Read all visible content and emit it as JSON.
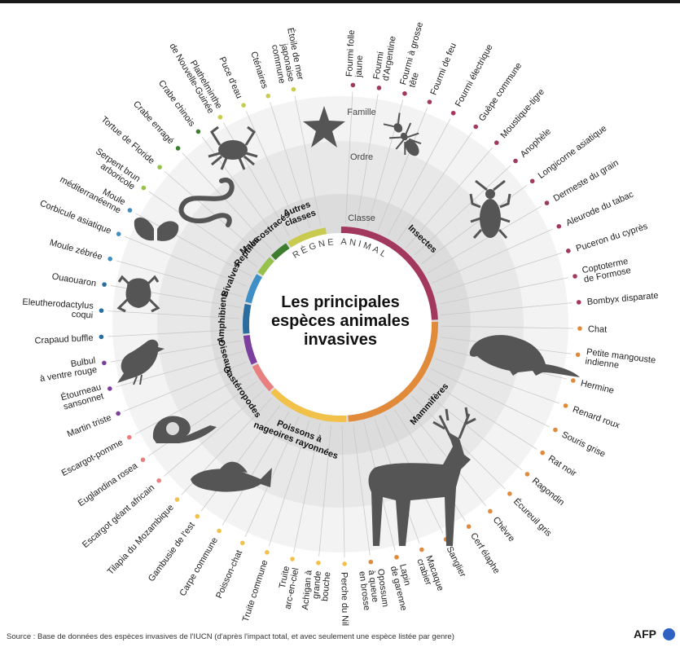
{
  "title": "Les principales espèces animales invasives",
  "title_lines": [
    "Les principales",
    "espèces animales",
    "invasives"
  ],
  "ring_labels": {
    "kingdom": "RÈGNE ANIMAL",
    "class": "Classe",
    "order": "Ordre",
    "family": "Famille"
  },
  "source": "Source : Base de données des espèces invasives de l'IUCN (d'après l'impact total, et avec seulement une espèce listée par genre)",
  "logo": "AFP",
  "colors": {
    "insectes": "#a3385e",
    "mammiferes": "#e08a3a",
    "poissons": "#f2c14a",
    "gasteropodes": "#ea7f7f",
    "oiseaux": "#7b3f9e",
    "amphibiens": "#2b6d9e",
    "bivalves": "#3d8fc6",
    "reptiles": "#96c14a",
    "malacostraces": "#3c7d2e",
    "autres": "#c8cb4e",
    "ring_outer": "#f2f2f2",
    "ring_mid": "#e6e6e6",
    "ring_inner": "#dadada"
  },
  "classes": [
    {
      "key": "insectes",
      "label": "Insectes",
      "lines": [
        "Insectes"
      ]
    },
    {
      "key": "mammiferes",
      "label": "Mammifères",
      "lines": [
        "Mammifères"
      ]
    },
    {
      "key": "poissons",
      "label": "Poissons à nageoires rayonnées",
      "lines": [
        "Poissons à",
        "nageoires rayonnées"
      ]
    },
    {
      "key": "gasteropodes",
      "label": "Gastéropodes",
      "lines": [
        "Gastéropodes"
      ]
    },
    {
      "key": "oiseaux",
      "label": "Oiseaux",
      "lines": [
        "Oiseaux"
      ]
    },
    {
      "key": "amphibiens",
      "label": "Amphibiens",
      "lines": [
        "Amphibiens"
      ]
    },
    {
      "key": "bivalves",
      "label": "Bivalves",
      "lines": [
        "Bivalves"
      ]
    },
    {
      "key": "reptiles",
      "label": "Reptiles",
      "lines": [
        "Reptiles"
      ]
    },
    {
      "key": "malacostraces",
      "label": "Malacostracés",
      "lines": [
        "Malacostracés"
      ]
    },
    {
      "key": "autres",
      "label": "Autres classes",
      "lines": [
        "Autres",
        "classes"
      ]
    }
  ],
  "species": [
    {
      "name": "Fourmi folle jaune",
      "lines": [
        "Fourmi folle",
        "jaune"
      ],
      "class": "insectes"
    },
    {
      "name": "Fourmi d'Argentine",
      "lines": [
        "Fourmi",
        "d'Argentine"
      ],
      "class": "insectes"
    },
    {
      "name": "Fourmi à grosse tête",
      "lines": [
        "Fourmi à grosse",
        "tête"
      ],
      "class": "insectes"
    },
    {
      "name": "Fourmi de feu",
      "lines": [
        "Fourmi de feu"
      ],
      "class": "insectes"
    },
    {
      "name": "Fourmi électrique",
      "lines": [
        "Fourmi électrique"
      ],
      "class": "insectes"
    },
    {
      "name": "Guêpe commune",
      "lines": [
        "Guêpe commune"
      ],
      "class": "insectes"
    },
    {
      "name": "Moustique-tigre",
      "lines": [
        "Moustique-tigre"
      ],
      "class": "insectes"
    },
    {
      "name": "Anophèle",
      "lines": [
        "Anophèle"
      ],
      "class": "insectes"
    },
    {
      "name": "Longicorne asiatique",
      "lines": [
        "Longicorne asiatique"
      ],
      "class": "insectes"
    },
    {
      "name": "Dermeste du grain",
      "lines": [
        "Dermeste du grain"
      ],
      "class": "insectes"
    },
    {
      "name": "Aleurode du tabac",
      "lines": [
        "Aleurode du tabac"
      ],
      "class": "insectes"
    },
    {
      "name": "Puceron du cyprès",
      "lines": [
        "Puceron du cyprès"
      ],
      "class": "insectes"
    },
    {
      "name": "Coptoterme de Formose",
      "lines": [
        "Coptoterme",
        "de Formose"
      ],
      "class": "insectes"
    },
    {
      "name": "Bombyx disparate",
      "lines": [
        "Bombyx disparate"
      ],
      "class": "insectes"
    },
    {
      "name": "Chat",
      "lines": [
        "Chat"
      ],
      "class": "mammiferes"
    },
    {
      "name": "Petite mangouste indienne",
      "lines": [
        "Petite mangouste",
        "indienne"
      ],
      "class": "mammiferes"
    },
    {
      "name": "Hermine",
      "lines": [
        "Hermine"
      ],
      "class": "mammiferes"
    },
    {
      "name": "Renard roux",
      "lines": [
        "Renard roux"
      ],
      "class": "mammiferes"
    },
    {
      "name": "Souris grise",
      "lines": [
        "Souris grise"
      ],
      "class": "mammiferes"
    },
    {
      "name": "Rat noir",
      "lines": [
        "Rat noir"
      ],
      "class": "mammiferes"
    },
    {
      "name": "Ragondin",
      "lines": [
        "Ragondin"
      ],
      "class": "mammiferes"
    },
    {
      "name": "Écureuil gris",
      "lines": [
        "Écureuil gris"
      ],
      "class": "mammiferes"
    },
    {
      "name": "Chèvre",
      "lines": [
        "Chèvre"
      ],
      "class": "mammiferes"
    },
    {
      "name": "Cerf élaphe",
      "lines": [
        "Cerf élaphe"
      ],
      "class": "mammiferes"
    },
    {
      "name": "Sanglier",
      "lines": [
        "Sanglier"
      ],
      "class": "mammiferes"
    },
    {
      "name": "Macaque crabier",
      "lines": [
        "Macaque",
        "crabier"
      ],
      "class": "mammiferes"
    },
    {
      "name": "Lapin de garenne",
      "lines": [
        "Lapin",
        "de garenne"
      ],
      "class": "mammiferes"
    },
    {
      "name": "Opossum à queue en brosse",
      "lines": [
        "Opossum",
        "à queue",
        "en brosse"
      ],
      "class": "mammiferes"
    },
    {
      "name": "Perche du Nil",
      "lines": [
        "Perche du Nil"
      ],
      "class": "poissons"
    },
    {
      "name": "Achigan à grande bouche",
      "lines": [
        "Achigan à",
        "grande",
        "bouche"
      ],
      "class": "poissons"
    },
    {
      "name": "Truite arc-en-ciel",
      "lines": [
        "Truite",
        "arc-en-ciel"
      ],
      "class": "poissons"
    },
    {
      "name": "Truite commune",
      "lines": [
        "Truite commune"
      ],
      "class": "poissons"
    },
    {
      "name": "Poisson-chat",
      "lines": [
        "Poisson-chat"
      ],
      "class": "poissons"
    },
    {
      "name": "Carpe commune",
      "lines": [
        "Carpe commune"
      ],
      "class": "poissons"
    },
    {
      "name": "Gambusie de l'est",
      "lines": [
        "Gambusie de l'est"
      ],
      "class": "poissons"
    },
    {
      "name": "Tilapia du Mozambique",
      "lines": [
        "Tilapia du Mozambique"
      ],
      "class": "poissons"
    },
    {
      "name": "Escargot géant africain",
      "lines": [
        "Escargot géant africain"
      ],
      "class": "gasteropodes"
    },
    {
      "name": "Euglandina rosea",
      "lines": [
        "Euglandina rosea"
      ],
      "class": "gasteropodes"
    },
    {
      "name": "Escargot-pomme",
      "lines": [
        "Escargot-pomme"
      ],
      "class": "gasteropodes"
    },
    {
      "name": "Martin triste",
      "lines": [
        "Martin triste"
      ],
      "class": "oiseaux"
    },
    {
      "name": "Étourneau sansonnet",
      "lines": [
        "Étourneau",
        "sansonnet"
      ],
      "class": "oiseaux"
    },
    {
      "name": "Bulbul à ventre rouge",
      "lines": [
        "Bulbul",
        "à ventre rouge"
      ],
      "class": "oiseaux"
    },
    {
      "name": "Crapaud buffle",
      "lines": [
        "Crapaud buffle"
      ],
      "class": "amphibiens"
    },
    {
      "name": "Eleutherodactylus coqui",
      "lines": [
        "Eleutherodactylus",
        "coqui"
      ],
      "class": "amphibiens"
    },
    {
      "name": "Ouaouaron",
      "lines": [
        "Ouaouaron"
      ],
      "class": "amphibiens"
    },
    {
      "name": "Moule zébrée",
      "lines": [
        "Moule zébrée"
      ],
      "class": "bivalves"
    },
    {
      "name": "Corbicule asiatique",
      "lines": [
        "Corbicule asiatique"
      ],
      "class": "bivalves"
    },
    {
      "name": "Moule méditerranéenne",
      "lines": [
        "Moule",
        "méditerranéenne"
      ],
      "class": "bivalves"
    },
    {
      "name": "Serpent brun arboricole",
      "lines": [
        "Serpent brun",
        "arboricole"
      ],
      "class": "reptiles"
    },
    {
      "name": "Tortue de Floride",
      "lines": [
        "Tortue de Floride"
      ],
      "class": "reptiles"
    },
    {
      "name": "Crabe enragé",
      "lines": [
        "Crabe enragé"
      ],
      "class": "malacostraces"
    },
    {
      "name": "Crabe chinois",
      "lines": [
        "Crabe chinois"
      ],
      "class": "malacostraces"
    },
    {
      "name": "Plathelminthe de Nouvelle-Guinée",
      "lines": [
        "Plathelminthe",
        "de Nouvelle-Guinée"
      ],
      "class": "autres"
    },
    {
      "name": "Puce d'eau",
      "lines": [
        "Puce d'eau"
      ],
      "class": "autres"
    },
    {
      "name": "Cténaires",
      "lines": [
        "Cténaires"
      ],
      "class": "autres"
    },
    {
      "name": "Étoile de mer japonaise commune",
      "lines": [
        "Étoile de mer",
        "japonaise",
        "commune"
      ],
      "class": "autres"
    }
  ],
  "icons": [
    "starfish-icon",
    "ant-icon",
    "beetle-icon",
    "mongoose-icon",
    "deer-icon",
    "fish-icon",
    "snail-icon",
    "bird-icon",
    "frog-icon",
    "mussel-icon",
    "snake-icon",
    "crab-icon"
  ]
}
